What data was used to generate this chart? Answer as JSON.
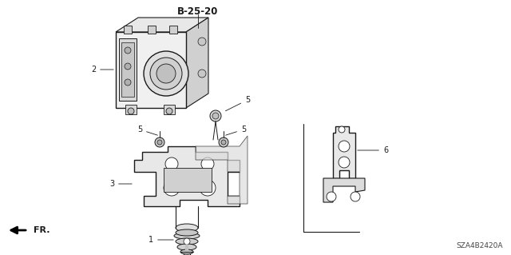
{
  "title": "B-25-20",
  "diagram_code": "SZA4B2420A",
  "bg_color": "#ffffff",
  "line_color": "#1a1a1a",
  "label_color": "#1a1a1a",
  "title_fontsize": 8.5,
  "label_fontsize": 7,
  "fig_width": 6.4,
  "fig_height": 3.19,
  "dpi": 100
}
